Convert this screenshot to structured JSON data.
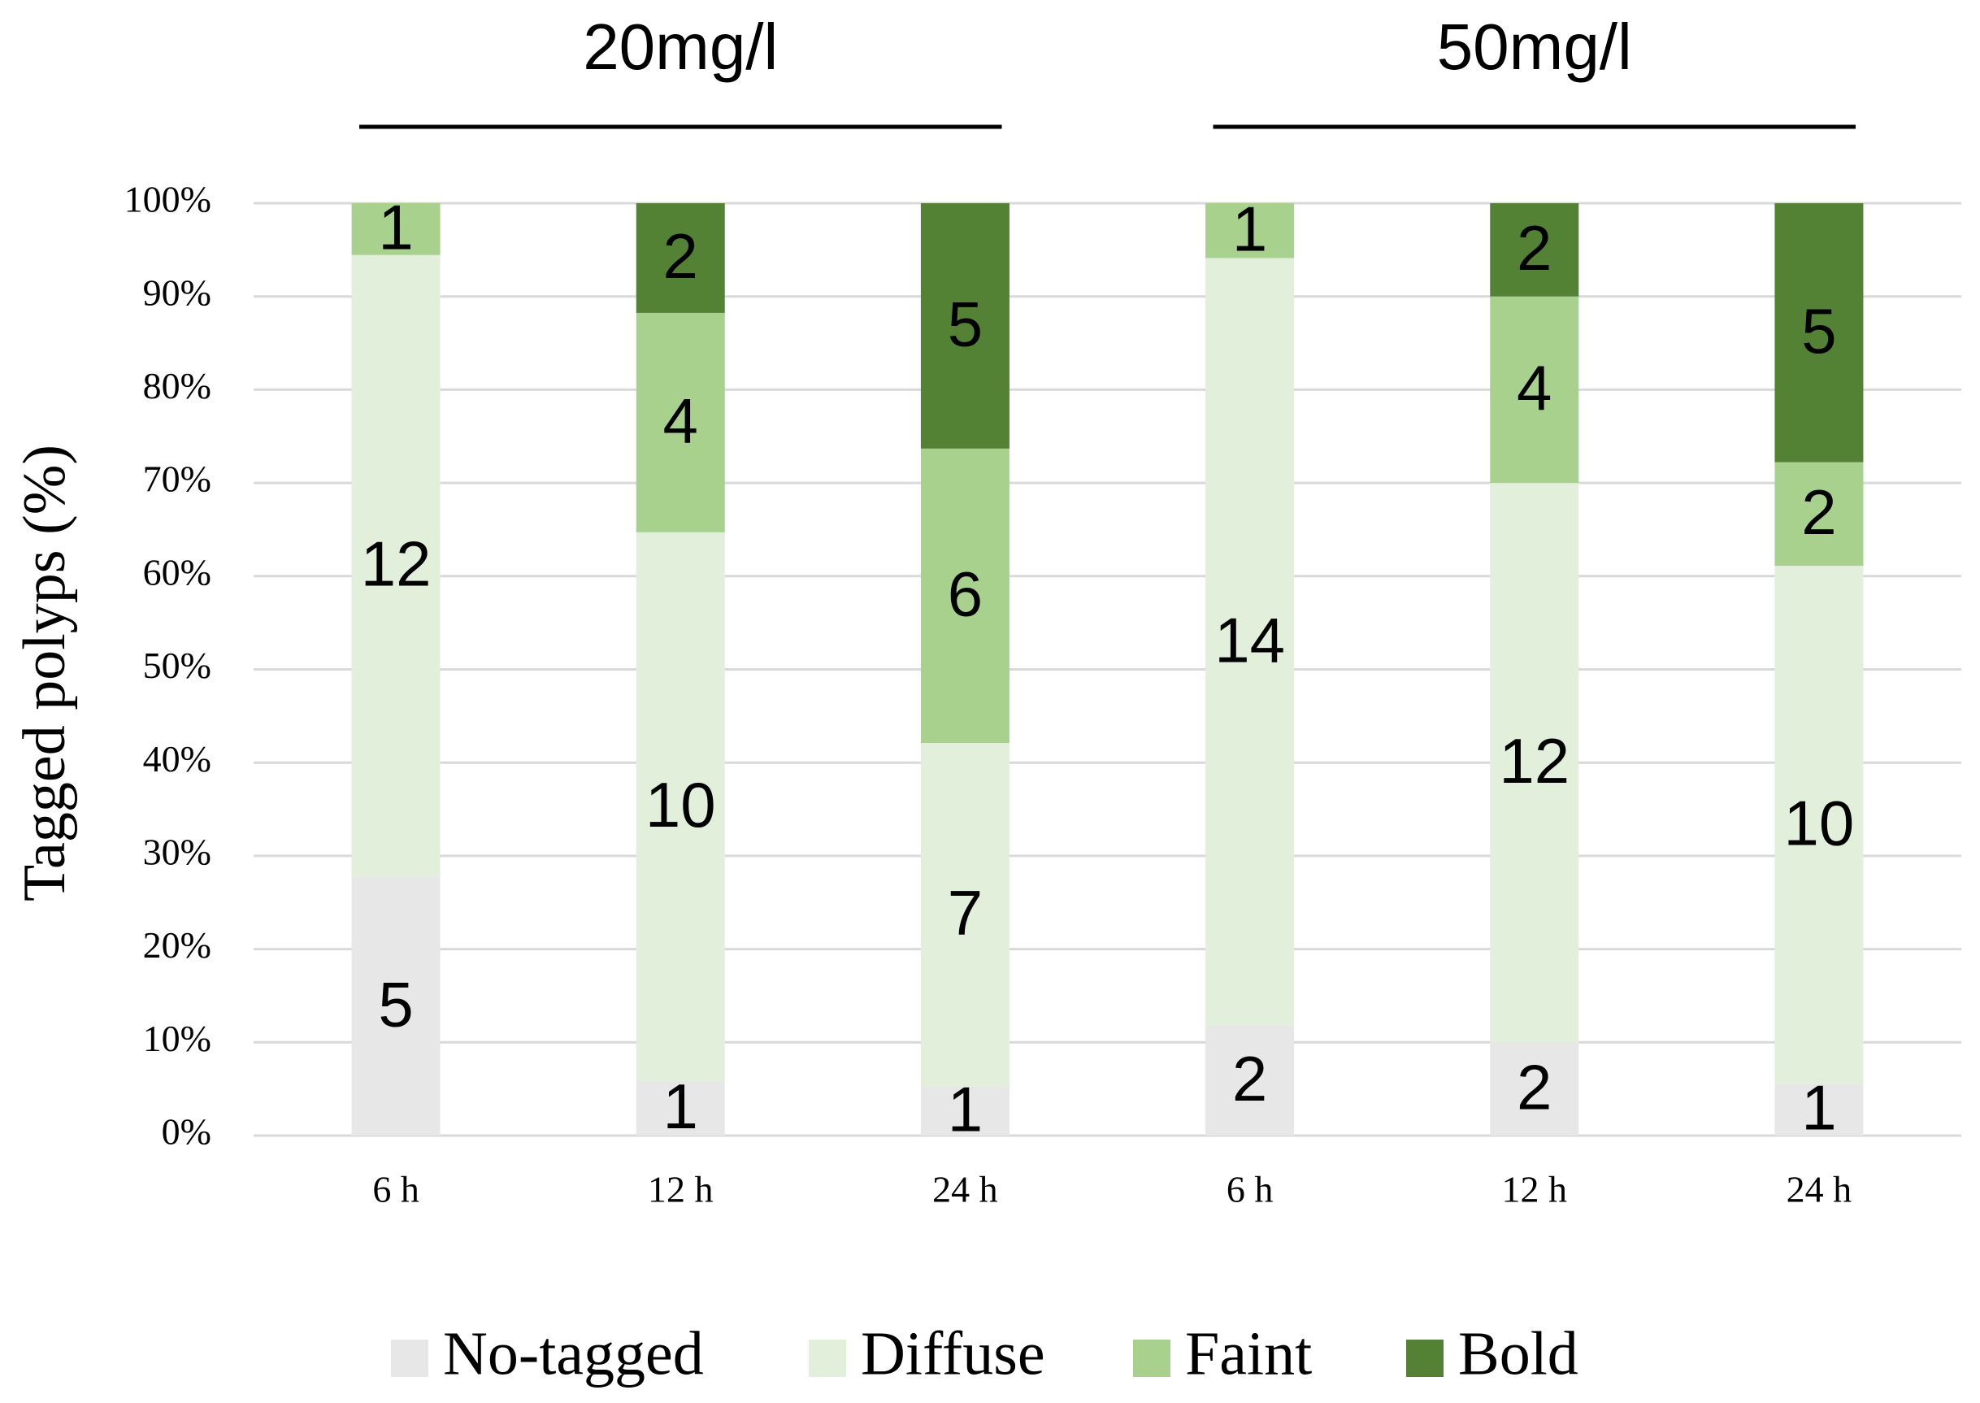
{
  "chart_data": {
    "type": "bar",
    "stacking": "percent",
    "y_label": "Tagged polyps (%)",
    "groups": [
      {
        "label": "20mg/l",
        "categories": [
          "6 h",
          "12 h",
          "24 h"
        ]
      },
      {
        "label": "50mg/l",
        "categories": [
          "6 h",
          "12 h",
          "24 h"
        ]
      }
    ],
    "series": [
      {
        "name": "No-tagged",
        "color": "#e7e7e7",
        "values": [
          5,
          1,
          1,
          2,
          2,
          1
        ]
      },
      {
        "name": "Diffuse",
        "color": "#e2efda",
        "values": [
          12,
          10,
          7,
          14,
          12,
          10
        ]
      },
      {
        "name": "Faint",
        "color": "#a9d18e",
        "values": [
          1,
          4,
          6,
          1,
          4,
          2
        ]
      },
      {
        "name": "Bold",
        "color": "#548235",
        "values": [
          null,
          2,
          5,
          null,
          2,
          5
        ]
      }
    ],
    "ylim": [
      0,
      100
    ],
    "yticks": [
      {
        "value": 0,
        "label": "0%"
      },
      {
        "value": 10,
        "label": "10%"
      },
      {
        "value": 20,
        "label": "20%"
      },
      {
        "value": 30,
        "label": "30%"
      },
      {
        "value": 40,
        "label": "40%"
      },
      {
        "value": 50,
        "label": "50%"
      },
      {
        "value": 60,
        "label": "60%"
      },
      {
        "value": 70,
        "label": "70%"
      },
      {
        "value": 80,
        "label": "80%"
      },
      {
        "value": 90,
        "label": "90%"
      },
      {
        "value": 100,
        "label": "100%"
      }
    ],
    "grid": true,
    "legend": "bottom"
  }
}
